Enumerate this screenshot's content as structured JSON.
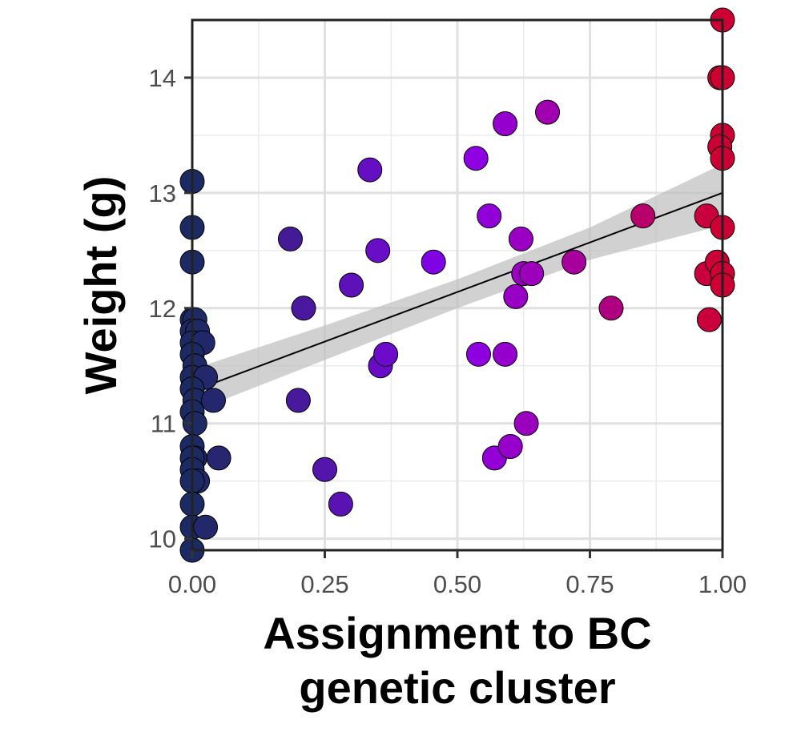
{
  "chart_data": {
    "type": "scatter",
    "title": "",
    "xlabel_lines": [
      "Assignment to BC",
      "genetic cluster"
    ],
    "ylabel": "Weight (g)",
    "xlim": [
      0,
      1
    ],
    "ylim": [
      9.9,
      14.5
    ],
    "x_ticks": [
      0,
      0.25,
      0.5,
      0.75,
      1
    ],
    "x_tick_labels": [
      "0.00",
      "0.25",
      "0.50",
      "0.75",
      "1.00"
    ],
    "y_ticks": [
      10,
      11,
      12,
      13,
      14
    ],
    "y_tick_labels": [
      "10",
      "11",
      "12",
      "13",
      "14"
    ],
    "grid": true,
    "legend": "none",
    "color_scale": {
      "low": "#1c2a63",
      "mid": "#8a00f0",
      "high": "#cc0033"
    },
    "points": [
      {
        "x": 0.0,
        "y": 13.1
      },
      {
        "x": 0.0,
        "y": 12.7
      },
      {
        "x": 0.0,
        "y": 12.4
      },
      {
        "x": 0.0,
        "y": 11.9
      },
      {
        "x": 0.005,
        "y": 11.9
      },
      {
        "x": 0.0,
        "y": 11.8
      },
      {
        "x": 0.01,
        "y": 11.8
      },
      {
        "x": 0.0,
        "y": 11.7
      },
      {
        "x": 0.02,
        "y": 11.7
      },
      {
        "x": 0.0,
        "y": 11.6
      },
      {
        "x": 0.005,
        "y": 11.5
      },
      {
        "x": 0.0,
        "y": 11.4
      },
      {
        "x": 0.025,
        "y": 11.4
      },
      {
        "x": 0.0,
        "y": 11.3
      },
      {
        "x": 0.005,
        "y": 11.2
      },
      {
        "x": 0.04,
        "y": 11.2
      },
      {
        "x": 0.0,
        "y": 11.1
      },
      {
        "x": 0.005,
        "y": 11.0
      },
      {
        "x": 0.0,
        "y": 10.8
      },
      {
        "x": 0.005,
        "y": 10.7
      },
      {
        "x": 0.0,
        "y": 10.7
      },
      {
        "x": 0.05,
        "y": 10.7
      },
      {
        "x": 0.0,
        "y": 10.6
      },
      {
        "x": 0.01,
        "y": 10.5
      },
      {
        "x": 0.0,
        "y": 10.5
      },
      {
        "x": 0.0,
        "y": 10.3
      },
      {
        "x": 0.0,
        "y": 10.1
      },
      {
        "x": 0.025,
        "y": 10.1
      },
      {
        "x": 0.0,
        "y": 9.9
      },
      {
        "x": 0.185,
        "y": 12.6
      },
      {
        "x": 0.2,
        "y": 11.2
      },
      {
        "x": 0.21,
        "y": 12.0
      },
      {
        "x": 0.25,
        "y": 10.6
      },
      {
        "x": 0.28,
        "y": 10.3
      },
      {
        "x": 0.3,
        "y": 12.2
      },
      {
        "x": 0.335,
        "y": 13.2
      },
      {
        "x": 0.35,
        "y": 12.5
      },
      {
        "x": 0.355,
        "y": 11.5
      },
      {
        "x": 0.365,
        "y": 11.6
      },
      {
        "x": 0.455,
        "y": 12.4
      },
      {
        "x": 0.535,
        "y": 13.3
      },
      {
        "x": 0.54,
        "y": 11.6
      },
      {
        "x": 0.56,
        "y": 12.8
      },
      {
        "x": 0.57,
        "y": 10.7
      },
      {
        "x": 0.59,
        "y": 11.6
      },
      {
        "x": 0.59,
        "y": 13.6
      },
      {
        "x": 0.6,
        "y": 10.8
      },
      {
        "x": 0.61,
        "y": 12.1
      },
      {
        "x": 0.62,
        "y": 12.6
      },
      {
        "x": 0.625,
        "y": 12.3
      },
      {
        "x": 0.63,
        "y": 11.0
      },
      {
        "x": 0.64,
        "y": 12.3
      },
      {
        "x": 0.67,
        "y": 13.7
      },
      {
        "x": 0.72,
        "y": 12.4
      },
      {
        "x": 0.79,
        "y": 12.0
      },
      {
        "x": 0.85,
        "y": 12.8
      },
      {
        "x": 0.97,
        "y": 12.8
      },
      {
        "x": 0.97,
        "y": 12.3
      },
      {
        "x": 0.975,
        "y": 11.9
      },
      {
        "x": 0.99,
        "y": 12.4
      },
      {
        "x": 0.995,
        "y": 14.0
      },
      {
        "x": 1.0,
        "y": 14.5
      },
      {
        "x": 1.0,
        "y": 14.0
      },
      {
        "x": 1.0,
        "y": 13.5
      },
      {
        "x": 0.995,
        "y": 13.4
      },
      {
        "x": 1.0,
        "y": 13.3
      },
      {
        "x": 1.0,
        "y": 12.7
      },
      {
        "x": 1.0,
        "y": 12.3
      },
      {
        "x": 1.0,
        "y": 12.2
      }
    ],
    "trend_line": {
      "x": [
        0,
        1
      ],
      "y": [
        11.28,
        13.0
      ]
    },
    "confidence_band": {
      "x": [
        0,
        0.25,
        0.5,
        0.75,
        1
      ],
      "lower": [
        11.1,
        11.55,
        12.0,
        12.42,
        12.72
      ],
      "upper": [
        11.47,
        11.85,
        12.25,
        12.7,
        13.25
      ]
    }
  }
}
